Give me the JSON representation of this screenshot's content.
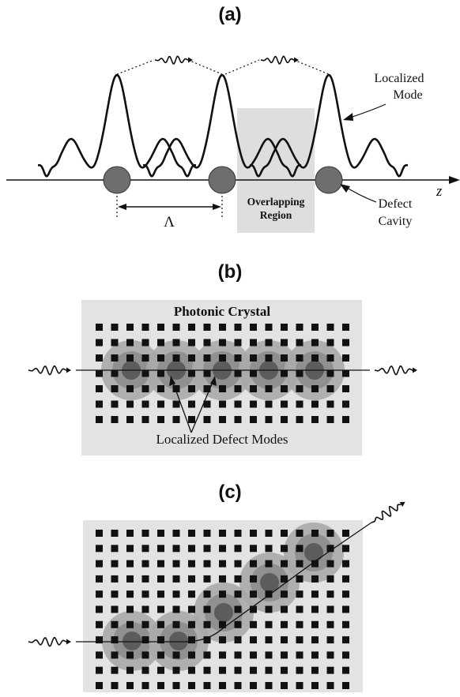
{
  "panels": {
    "a": {
      "label": "(a)",
      "localized_mode_line1": "Localized",
      "localized_mode_line2": "Mode",
      "overlap_line1": "Overlapping",
      "overlap_line2": "Region",
      "defect_line1": "Defect",
      "defect_line2": "Cavity",
      "axis_label": "z",
      "period_label": "Λ"
    },
    "b": {
      "label": "(b)",
      "crystal_label": "Photonic Crystal",
      "modes_label": "Localized Defect Modes"
    },
    "c": {
      "label": "(c)"
    }
  },
  "colors": {
    "ink": "#111111",
    "crystal_bg": "#e3e3e3",
    "overlap_bg": "#dedede",
    "cavity": "#6e6e6e",
    "glow_outer": "#a9a9a9",
    "glow_mid": "#8d8d8d",
    "glow_core": "#5c5c5c"
  }
}
